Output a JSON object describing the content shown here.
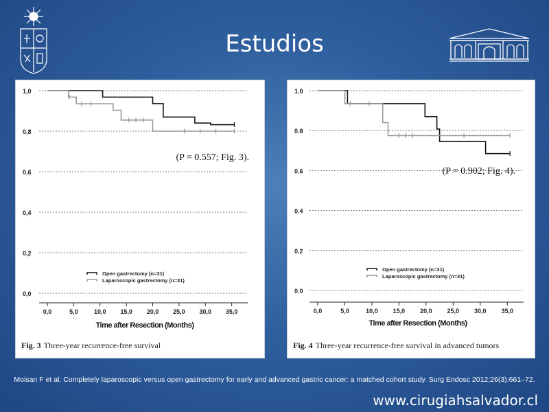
{
  "slide": {
    "title": "Estudios",
    "citation": "Moisan F et al. Completely laparoscopic versus open gastrectomy for early and advanced gastric cancer: a matched cohort study. Surg Endosc 2012;26(3):661–72.",
    "website": "www.cirugiahsalvador.cl"
  },
  "chart_data": [
    {
      "type": "line",
      "step": true,
      "figure_label": "Fig. 3",
      "caption": "Three-year recurrence-free survival",
      "annotation": "(P = 0.557; Fig. 3).",
      "xlabel": "Time after Resection (Months)",
      "ylabel": "",
      "xlim": [
        0,
        37
      ],
      "ylim": [
        0,
        1
      ],
      "xticks": [
        "0,0",
        "5,0",
        "10,0",
        "15,0",
        "20,0",
        "25,0",
        "30,0",
        "35,0"
      ],
      "yticks": [
        "0,0",
        "0,2",
        "0,4",
        "0,6",
        "0,8",
        "1,0"
      ],
      "grid": "horizontal dashed",
      "legend": "bottom-left",
      "series": [
        {
          "name": "Open gastrectomy (n=31)",
          "color": "#111111",
          "points": [
            [
              0,
              1.0
            ],
            [
              10.5,
              1.0
            ],
            [
              10.5,
              0.968
            ],
            [
              20,
              0.968
            ],
            [
              20,
              0.936
            ],
            [
              22,
              0.936
            ],
            [
              22,
              0.87
            ],
            [
              28,
              0.87
            ],
            [
              28,
              0.84
            ],
            [
              31,
              0.84
            ],
            [
              31,
              0.832
            ],
            [
              35.5,
              0.832
            ]
          ],
          "censored": [
            [
              35.5,
              0.832
            ]
          ]
        },
        {
          "name": "Laparoscopic gastrectomy (n=31)",
          "color": "#999999",
          "points": [
            [
              0,
              1.0
            ],
            [
              4,
              1.0
            ],
            [
              4,
              0.968
            ],
            [
              5.5,
              0.968
            ],
            [
              5.5,
              0.935
            ],
            [
              12.5,
              0.935
            ],
            [
              12.5,
              0.903
            ],
            [
              14,
              0.903
            ],
            [
              14,
              0.855
            ],
            [
              20,
              0.855
            ],
            [
              20,
              0.8
            ],
            [
              35.5,
              0.8
            ]
          ],
          "censored": [
            [
              4.2,
              0.968
            ],
            [
              6.5,
              0.935
            ],
            [
              8.3,
              0.935
            ],
            [
              15.5,
              0.855
            ],
            [
              16.8,
              0.855
            ],
            [
              18.2,
              0.855
            ],
            [
              26,
              0.8
            ],
            [
              29,
              0.8
            ],
            [
              32,
              0.8
            ],
            [
              35.5,
              0.8
            ]
          ]
        }
      ]
    },
    {
      "type": "line",
      "step": true,
      "figure_label": "Fig. 4",
      "caption": "Three-year recurrence-free survival in advanced tumors",
      "annotation": "(P = 0.902; Fig. 4).",
      "xlabel": "Time after Resection (Months)",
      "ylabel": "",
      "xlim": [
        0,
        37
      ],
      "ylim": [
        0,
        1
      ],
      "xticks": [
        "0,0",
        "5,0",
        "10,0",
        "15,0",
        "20,0",
        "25,0",
        "30,0",
        "35,0"
      ],
      "yticks": [
        "0.0",
        "0.2",
        "0.4",
        "0.6",
        "0.8",
        "1.0"
      ],
      "grid": "horizontal dashed",
      "legend": "bottom-left",
      "series": [
        {
          "name": "Open gastrectomy (n=31)",
          "color": "#111111",
          "points": [
            [
              0,
              1.0
            ],
            [
              5.5,
              1.0
            ],
            [
              5.5,
              0.935
            ],
            [
              15.5,
              0.935
            ],
            [
              15.5,
              0.935
            ],
            [
              19.8,
              0.935
            ],
            [
              19.8,
              0.87
            ],
            [
              22,
              0.87
            ],
            [
              22,
              0.808
            ],
            [
              22.5,
              0.808
            ],
            [
              22.5,
              0.745
            ],
            [
              31,
              0.745
            ],
            [
              31,
              0.685
            ],
            [
              35.5,
              0.685
            ]
          ],
          "censored": [
            [
              35.5,
              0.685
            ]
          ]
        },
        {
          "name": "Laparoscopic gastrectomy (n=31)",
          "color": "#999999",
          "points": [
            [
              0,
              1.0
            ],
            [
              5,
              1.0
            ],
            [
              5,
              0.935
            ],
            [
              12,
              0.935
            ],
            [
              12,
              0.84
            ],
            [
              13,
              0.84
            ],
            [
              13,
              0.775
            ],
            [
              35.5,
              0.775
            ]
          ],
          "censored": [
            [
              6,
              0.935
            ],
            [
              9.5,
              0.935
            ],
            [
              15,
              0.775
            ],
            [
              16.2,
              0.775
            ],
            [
              17.5,
              0.775
            ],
            [
              27,
              0.775
            ],
            [
              35.5,
              0.775
            ]
          ]
        }
      ]
    }
  ]
}
